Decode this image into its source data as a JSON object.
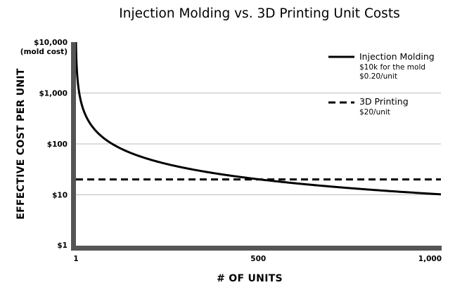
{
  "chart_data": {
    "type": "line",
    "title": "Injection Molding vs. 3D Printing Unit Costs",
    "xlabel": "# OF UNITS",
    "ylabel": "EFFECTIVE COST PER UNIT",
    "y_scale": "log",
    "ylim": [
      1,
      10000
    ],
    "xlim": [
      1,
      1000
    ],
    "grid": true,
    "legend_position": "top-right",
    "x_ticks": [
      {
        "value": 1,
        "label": "1"
      },
      {
        "value": 500,
        "label": "500"
      },
      {
        "value": 1000,
        "label": "1,000"
      }
    ],
    "y_ticks": [
      {
        "value": 10000,
        "label": "$10,000",
        "sublabel": "(mold cost)"
      },
      {
        "value": 1000,
        "label": "$1,000"
      },
      {
        "value": 100,
        "label": "$100"
      },
      {
        "value": 10,
        "label": "$10"
      },
      {
        "value": 1,
        "label": "$1"
      }
    ],
    "series": [
      {
        "name": "Injection Molding",
        "details": [
          "$10k for the mold",
          "$0.20/unit"
        ],
        "style": "solid",
        "color": "#000000",
        "mold_cost": 10000,
        "unit_cost": 0.2
      },
      {
        "name": "3D Printing",
        "details": [
          "$20/unit"
        ],
        "style": "dashed",
        "color": "#000000",
        "unit_cost": 20
      }
    ]
  }
}
